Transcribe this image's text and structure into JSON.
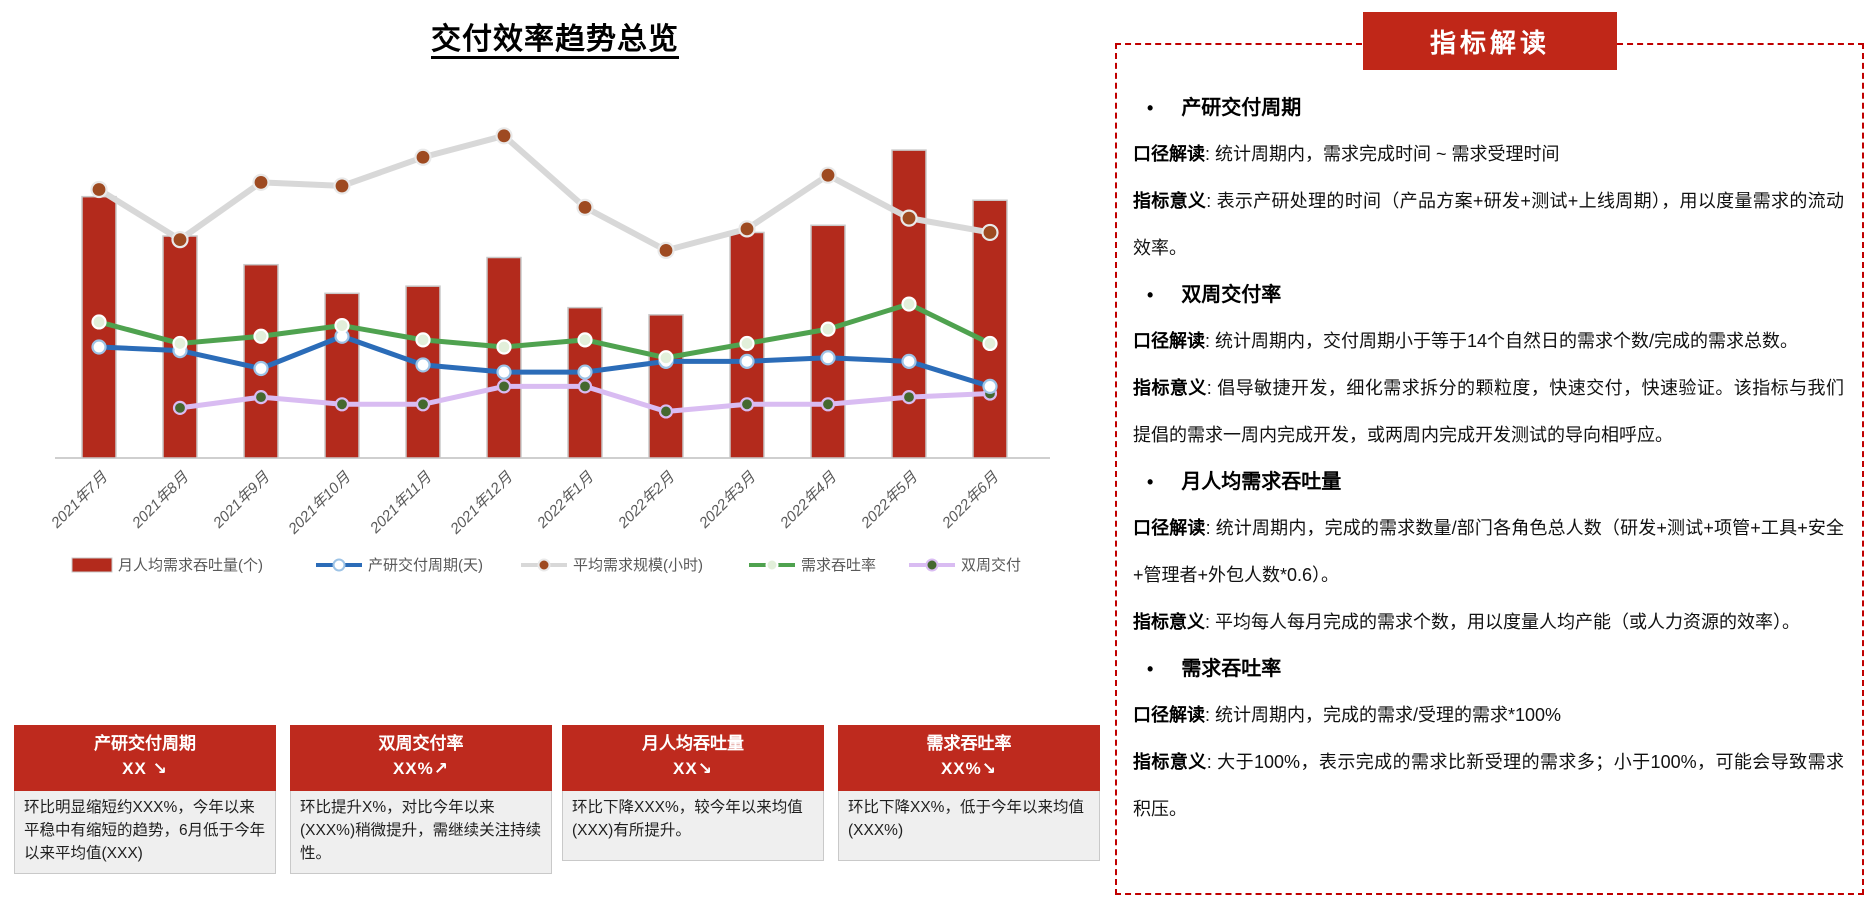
{
  "chart_data": {
    "type": "bar+line",
    "title": "交付效率趋势总览",
    "categories": [
      "2021年7月",
      "2021年8月",
      "2021年9月",
      "2021年10月",
      "2021年11月",
      "2021年12月",
      "2022年1月",
      "2022年2月",
      "2022年3月",
      "2022年4月",
      "2022年5月",
      "2022年6月"
    ],
    "y_axis_visible": false,
    "value_scale": "relative units 0-100 (no y-axis labels shown in chart)",
    "ylim": [
      0,
      100
    ],
    "legend_position": "bottom",
    "grid": false,
    "series": [
      {
        "name": "月人均需求吞吐量(个)",
        "type": "bar",
        "color": "#B32A1C",
        "values": [
          73,
          62,
          54,
          46,
          48,
          56,
          42,
          40,
          63,
          65,
          86,
          72
        ]
      },
      {
        "name": "产研交付周期(天)",
        "type": "line",
        "color": "#2B6CB8",
        "marker_fill": "#FFFFFF",
        "marker_stroke": "#9DC3E6",
        "values": [
          31,
          30,
          25,
          34,
          26,
          24,
          24,
          27,
          27,
          28,
          27,
          20
        ]
      },
      {
        "name": "平均需求规模(小时)",
        "type": "line",
        "color": "#D8D8D8",
        "marker_fill": "#9E4A21",
        "marker_stroke": "#E9E9E9",
        "values": [
          75,
          61,
          77,
          76,
          84,
          90,
          70,
          58,
          64,
          79,
          67,
          63
        ]
      },
      {
        "name": "需求吞吐率",
        "type": "line",
        "color": "#4FA24F",
        "marker_fill": "#E2EFDA",
        "marker_stroke": "#FFFFFF",
        "values": [
          38,
          32,
          34,
          37,
          33,
          31,
          33,
          28,
          32,
          36,
          43,
          32
        ]
      },
      {
        "name": "双周交付",
        "type": "line",
        "color": "#D9BCF2",
        "marker_fill": "#44682F",
        "marker_stroke": "#D9BCF2",
        "values": [
          null,
          14,
          17,
          15,
          15,
          20,
          20,
          13,
          15,
          15,
          17,
          18
        ]
      }
    ]
  },
  "kpi_cards": [
    {
      "title": "产研交付周期",
      "value": "XX ↘",
      "description": "环比明显缩短约XXX%，今年以来平稳中有缩短的趋势，6月低于今年以来平均值(XXX)"
    },
    {
      "title": "双周交付率",
      "value": "XX%↗",
      "description": "环比提升X%，对比今年以来(XXX%)稍微提升，需继续关注持续性。"
    },
    {
      "title": "月人均吞吐量",
      "value": "XX↘",
      "description": "环比下降XXX%，较今年以来均值(XXX)有所提升。"
    },
    {
      "title": "需求吞吐率",
      "value": "XX%↘",
      "description": "环比下降XX%，低于今年以来均值(XXX%)"
    }
  ],
  "panel": {
    "badge": "指标解读",
    "sections": [
      {
        "heading": "产研交付周期",
        "items": [
          {
            "label": "口径解读",
            "text": ": 统计周期内，需求完成时间 ~ 需求受理时间"
          },
          {
            "label": "指标意义",
            "text": ": 表示产研处理的时间（产品方案+研发+测试+上线周期），用以度量需求的流动效率。"
          }
        ]
      },
      {
        "heading": "双周交付率",
        "items": [
          {
            "label": "口径解读",
            "text": ": 统计周期内，交付周期小于等于14个自然日的需求个数/完成的需求总数。"
          },
          {
            "label": "指标意义",
            "text": ": 倡导敏捷开发，细化需求拆分的颗粒度，快速交付，快速验证。该指标与我们提倡的需求一周内完成开发，或两周内完成开发测试的导向相呼应。"
          }
        ]
      },
      {
        "heading": "月人均需求吞吐量",
        "items": [
          {
            "label": "口径解读",
            "text": ": 统计周期内，完成的需求数量/部门各角色总人数（研发+测试+项管+工具+安全+管理者+外包人数*0.6）。"
          },
          {
            "label": "指标意义",
            "text": ": 平均每人每月完成的需求个数，用以度量人均产能（或人力资源的效率）。"
          }
        ]
      },
      {
        "heading": "需求吞吐率",
        "items": [
          {
            "label": "口径解读",
            "text": ": 统计周期内，完成的需求/受理的需求*100%"
          },
          {
            "label": "指标意义",
            "text": ": 大于100%，表示完成的需求比新受理的需求多；小于100%，可能会导致需求积压。"
          }
        ]
      }
    ]
  },
  "colors": {
    "bar_red": "#B32A1C",
    "card_header_red": "#BE2A1E",
    "badge_red": "#C02718",
    "panel_border_red": "#C00000",
    "axis_gray": "#BFBFBF",
    "label_gray": "#595959"
  }
}
